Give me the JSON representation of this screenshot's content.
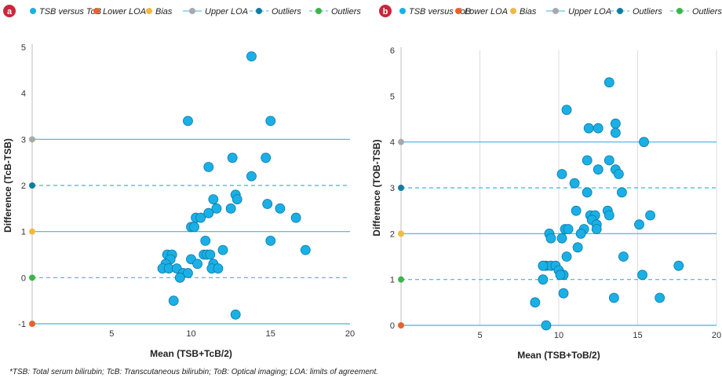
{
  "colors": {
    "points": "#1ab0e6",
    "point_stroke": "#0a78a8",
    "line": "#3bb6e0",
    "lower_loa": "#e8622c",
    "bias": "#f5b841",
    "upper_loa": "#a7a9ac",
    "outlier_upper": "#127da3",
    "outlier_lower": "#3cb54a",
    "panel_badge": "#c8283c"
  },
  "legend": {
    "a": [
      "TSB versus ToB",
      "Lower LOA",
      "Bias",
      "Upper LOA",
      "Outliers",
      "Outliers"
    ],
    "b": [
      "TSB versus ToB",
      "Lower LOA",
      "Bias",
      "Upper  LOA",
      "Outliers",
      "Outliers"
    ]
  },
  "footnote": "*TSB: Total serum bilirubin; TcB: Transcutaneous bilirubin; ToB: Optical imaging; LOA: limits of agreement.",
  "chart_data": [
    {
      "panel": "a",
      "type": "scatter",
      "xlabel": "Mean (TSB+TcB/2)",
      "ylabel": "Difference (TcB-TSB)",
      "xlim": [
        0,
        20
      ],
      "ylim": [
        -1,
        5
      ],
      "xticks": [
        5,
        10,
        15,
        20
      ],
      "yticks": [
        -1,
        0,
        1,
        2,
        3,
        4,
        5
      ],
      "grid": false,
      "legend_position": "top",
      "reference_lines": {
        "upper_loa": 3,
        "outlier_upper": 2,
        "bias": 1,
        "outlier_lower": 0,
        "lower_loa": -1
      },
      "points": [
        [
          13.8,
          4.8
        ],
        [
          9.8,
          3.4
        ],
        [
          15.0,
          3.4
        ],
        [
          12.6,
          2.6
        ],
        [
          14.7,
          2.6
        ],
        [
          11.1,
          2.4
        ],
        [
          13.8,
          2.2
        ],
        [
          12.8,
          1.8
        ],
        [
          12.9,
          1.7
        ],
        [
          11.4,
          1.7
        ],
        [
          14.8,
          1.6
        ],
        [
          12.5,
          1.5
        ],
        [
          11.6,
          1.5
        ],
        [
          15.6,
          1.5
        ],
        [
          11.1,
          1.4
        ],
        [
          10.3,
          1.3
        ],
        [
          10.6,
          1.3
        ],
        [
          16.6,
          1.3
        ],
        [
          10.0,
          1.1
        ],
        [
          10.2,
          1.1
        ],
        [
          10.9,
          0.8
        ],
        [
          15.0,
          0.8
        ],
        [
          12.0,
          0.6
        ],
        [
          17.2,
          0.6
        ],
        [
          10.8,
          0.5
        ],
        [
          11.0,
          0.5
        ],
        [
          11.2,
          0.5
        ],
        [
          8.5,
          0.5
        ],
        [
          8.8,
          0.5
        ],
        [
          10.0,
          0.4
        ],
        [
          8.7,
          0.4
        ],
        [
          10.4,
          0.3
        ],
        [
          8.4,
          0.3
        ],
        [
          11.4,
          0.3
        ],
        [
          8.2,
          0.2
        ],
        [
          8.6,
          0.2
        ],
        [
          9.1,
          0.2
        ],
        [
          11.3,
          0.2
        ],
        [
          11.7,
          0.2
        ],
        [
          9.5,
          0.1
        ],
        [
          9.8,
          0.1
        ],
        [
          9.3,
          0.0
        ],
        [
          8.9,
          -0.5
        ],
        [
          12.8,
          -0.8
        ]
      ]
    },
    {
      "panel": "b",
      "type": "scatter",
      "xlabel": "Mean (TSB+ToB/2)",
      "ylabel": "Difference (TOB-TSB)",
      "xlim": [
        0,
        20
      ],
      "ylim": [
        0,
        6
      ],
      "xticks": [
        5,
        10,
        15,
        20
      ],
      "yticks": [
        0,
        1,
        2,
        3,
        4,
        5,
        6
      ],
      "grid": true,
      "legend_position": "top",
      "reference_lines": {
        "upper_loa": 4,
        "outlier_upper": 3,
        "bias": 2,
        "outlier_lower": 1,
        "lower_loa": 0
      },
      "points": [
        [
          13.2,
          5.3
        ],
        [
          10.5,
          4.7
        ],
        [
          13.6,
          4.4
        ],
        [
          11.9,
          4.3
        ],
        [
          12.5,
          4.3
        ],
        [
          13.6,
          4.2
        ],
        [
          15.4,
          4.0
        ],
        [
          11.8,
          3.6
        ],
        [
          13.2,
          3.6
        ],
        [
          13.6,
          3.4
        ],
        [
          12.5,
          3.4
        ],
        [
          13.8,
          3.3
        ],
        [
          10.2,
          3.3
        ],
        [
          11.0,
          3.1
        ],
        [
          14.0,
          2.9
        ],
        [
          11.8,
          2.9
        ],
        [
          11.1,
          2.5
        ],
        [
          13.1,
          2.5
        ],
        [
          12.0,
          2.4
        ],
        [
          12.3,
          2.4
        ],
        [
          13.2,
          2.4
        ],
        [
          15.8,
          2.4
        ],
        [
          12.1,
          2.3
        ],
        [
          12.4,
          2.2
        ],
        [
          15.1,
          2.2
        ],
        [
          11.6,
          2.1
        ],
        [
          12.4,
          2.1
        ],
        [
          10.4,
          2.1
        ],
        [
          10.6,
          2.1
        ],
        [
          9.4,
          2.0
        ],
        [
          11.4,
          2.0
        ],
        [
          9.5,
          1.9
        ],
        [
          10.2,
          1.9
        ],
        [
          11.2,
          1.7
        ],
        [
          10.5,
          1.5
        ],
        [
          14.1,
          1.5
        ],
        [
          9.2,
          1.3
        ],
        [
          9.5,
          1.3
        ],
        [
          9.8,
          1.3
        ],
        [
          17.6,
          1.3
        ],
        [
          9.0,
          1.3
        ],
        [
          10.0,
          1.2
        ],
        [
          10.3,
          1.1
        ],
        [
          10.1,
          1.1
        ],
        [
          15.3,
          1.1
        ],
        [
          9.0,
          1.0
        ],
        [
          10.3,
          0.7
        ],
        [
          13.5,
          0.6
        ],
        [
          16.4,
          0.6
        ],
        [
          8.5,
          0.5
        ],
        [
          9.2,
          0.0
        ]
      ]
    }
  ]
}
